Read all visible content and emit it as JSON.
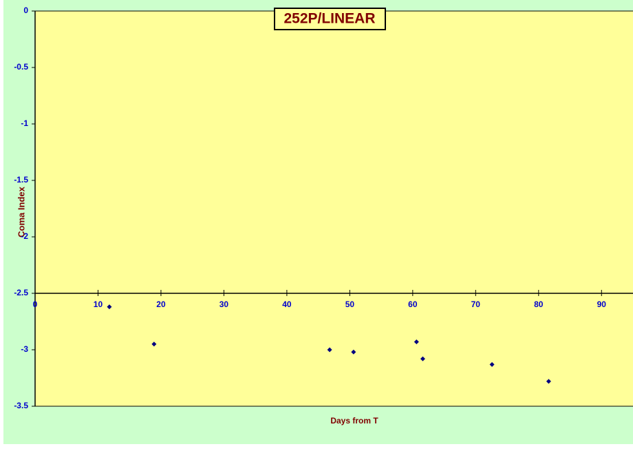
{
  "chart_data": {
    "type": "scatter",
    "title": "252P/LINEAR",
    "x_label": "Days from T",
    "y_label": "Coma Index",
    "x": [
      11.8,
      18.9,
      46.8,
      50.6,
      60.6,
      61.6,
      72.6,
      81.6
    ],
    "series": [
      {
        "name": "Coma Index",
        "color": "#000080",
        "values": [
          -2.62,
          -2.95,
          -3.0,
          -3.02,
          -2.93,
          -3.08,
          -3.13,
          -3.28
        ]
      }
    ],
    "xlim": [
      0,
      95
    ],
    "xticks": [
      0,
      10,
      20,
      30,
      40,
      50,
      60,
      70,
      80,
      90
    ],
    "ylim": [
      -3.5,
      0
    ],
    "yticks": [
      0,
      -0.5,
      -1,
      -1.5,
      -2,
      -2.5,
      -3,
      -3.5
    ],
    "x_axis_crosses": -2.5
  }
}
